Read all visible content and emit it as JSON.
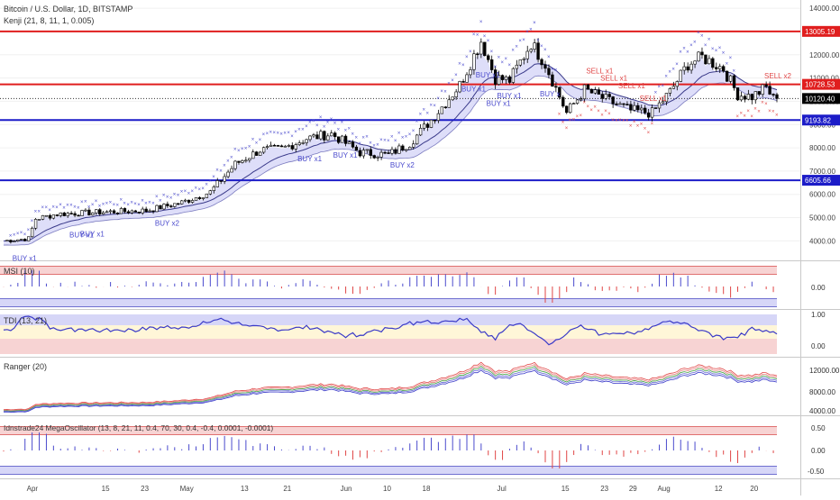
{
  "header": {
    "title": "Bitcoin / U.S. Dollar, 1D, BITSTAMP",
    "indicator": "Kenji (21, 8, 11, 1, 0.005)"
  },
  "price_levels": [
    {
      "label": "13005.19",
      "value": 13005.19,
      "color": "#e01e1e"
    },
    {
      "label": "10728.53",
      "value": 10728.53,
      "color": "#e01e1e"
    },
    {
      "label": "9193.82",
      "value": 9193.82,
      "color": "#1c1cc8"
    },
    {
      "label": "6605.66",
      "value": 6605.66,
      "color": "#1c1cc8"
    }
  ],
  "current_price": {
    "label": "10120.40",
    "value": 10120.4
  },
  "signals": [
    {
      "label": "BUY x1",
      "date_index": 5,
      "side": "buy"
    },
    {
      "label": "BUY x1",
      "date_index": 21,
      "side": "buy"
    },
    {
      "label": "BUY x1",
      "date_index": 24,
      "side": "buy"
    },
    {
      "label": "BUY x2",
      "date_index": 45,
      "side": "buy"
    },
    {
      "label": "BUY x1",
      "date_index": 85,
      "side": "buy"
    },
    {
      "label": "BUY x1",
      "date_index": 95,
      "side": "buy"
    },
    {
      "label": "BUY x2",
      "date_index": 111,
      "side": "buy"
    },
    {
      "label": "BUY x1",
      "date_index": 131,
      "side": "buy"
    },
    {
      "label": "BUY x1",
      "date_index": 135,
      "side": "buy"
    },
    {
      "label": "BUY x1",
      "date_index": 138,
      "side": "buy"
    },
    {
      "label": "BUY x1",
      "date_index": 141,
      "side": "buy"
    },
    {
      "label": "BUY x",
      "date_index": 153,
      "side": "buy"
    },
    {
      "label": "SELL x1",
      "date_index": 166,
      "side": "sell"
    },
    {
      "label": "SELL x1",
      "date_index": 170,
      "side": "sell"
    },
    {
      "label": "SELL x1",
      "date_index": 175,
      "side": "sell"
    },
    {
      "label": "SELL x1",
      "date_index": 181,
      "side": "sell"
    },
    {
      "label": "SELL x2",
      "date_index": 216,
      "side": "sell"
    }
  ],
  "x_axis": {
    "labels": [
      {
        "label": "Apr",
        "index": 8
      },
      {
        "label": "15",
        "index": 29
      },
      {
        "label": "23",
        "index": 40
      },
      {
        "label": "May",
        "index": 51
      },
      {
        "label": "13",
        "index": 68
      },
      {
        "label": "21",
        "index": 80
      },
      {
        "label": "Jun",
        "index": 96
      },
      {
        "label": "10",
        "index": 108
      },
      {
        "label": "18",
        "index": 119
      },
      {
        "label": "Jul",
        "index": 140
      },
      {
        "label": "15",
        "index": 158
      },
      {
        "label": "23",
        "index": 169
      },
      {
        "label": "29",
        "index": 177
      },
      {
        "label": "Aug",
        "index": 185
      },
      {
        "label": "12",
        "index": 201
      },
      {
        "label": "20",
        "index": 211
      }
    ]
  },
  "panels": [
    {
      "id": "msi",
      "title": "MSI (10)",
      "ticks": [
        "0.00"
      ]
    },
    {
      "id": "tdi",
      "title": "TDI (13, 21)",
      "ticks": [
        "1.00",
        "0.00"
      ]
    },
    {
      "id": "ranger",
      "title": "Ranger (20)",
      "ticks": [
        "12000.00",
        "8000.00",
        "4000.00"
      ]
    },
    {
      "id": "mega",
      "title": "Idnstrade24 MegaOscillator (13, 8, 21, 11, 0.4, 70, 30, 0.4, -0.4, 0.0001, -0.0001)",
      "ticks": [
        "0.50",
        "0.00",
        "-0.50"
      ]
    }
  ],
  "chart_data": {
    "type": "candlestick",
    "title": "Bitcoin / U.S. Dollar, 1D, BITSTAMP",
    "x_range": [
      "Mar 24",
      "Aug 21"
    ],
    "price_axis_ticks": [
      4000,
      5000,
      6000,
      7000,
      8000,
      9000,
      10000,
      11000,
      12000,
      13000,
      14000
    ],
    "price_range": [
      3200,
      14200
    ],
    "anchors": [
      {
        "i": 0,
        "p": 4000
      },
      {
        "i": 7,
        "p": 4100
      },
      {
        "i": 9,
        "p": 4950
      },
      {
        "i": 15,
        "p": 5150
      },
      {
        "i": 30,
        "p": 5250
      },
      {
        "i": 40,
        "p": 5300
      },
      {
        "i": 50,
        "p": 5650
      },
      {
        "i": 58,
        "p": 6100
      },
      {
        "i": 65,
        "p": 7300
      },
      {
        "i": 72,
        "p": 7900
      },
      {
        "i": 78,
        "p": 7950
      },
      {
        "i": 85,
        "p": 8400
      },
      {
        "i": 92,
        "p": 8600
      },
      {
        "i": 100,
        "p": 7800
      },
      {
        "i": 108,
        "p": 7700
      },
      {
        "i": 114,
        "p": 8200
      },
      {
        "i": 120,
        "p": 9200
      },
      {
        "i": 128,
        "p": 10700
      },
      {
        "i": 134,
        "p": 12600
      },
      {
        "i": 138,
        "p": 11000
      },
      {
        "i": 142,
        "p": 10900
      },
      {
        "i": 148,
        "p": 12500
      },
      {
        "i": 152,
        "p": 11600
      },
      {
        "i": 158,
        "p": 9500
      },
      {
        "i": 163,
        "p": 10500
      },
      {
        "i": 170,
        "p": 10000
      },
      {
        "i": 176,
        "p": 9600
      },
      {
        "i": 182,
        "p": 9500
      },
      {
        "i": 187,
        "p": 10400
      },
      {
        "i": 192,
        "p": 11600
      },
      {
        "i": 196,
        "p": 11900
      },
      {
        "i": 202,
        "p": 11400
      },
      {
        "i": 206,
        "p": 10300
      },
      {
        "i": 210,
        "p": 10200
      },
      {
        "i": 214,
        "p": 10600
      },
      {
        "i": 216,
        "p": 10120
      }
    ],
    "colors": {
      "buy": "#4a4acd",
      "sell": "#e04646",
      "band": "#c8c8f5",
      "ma": "#3a3a8a"
    }
  }
}
